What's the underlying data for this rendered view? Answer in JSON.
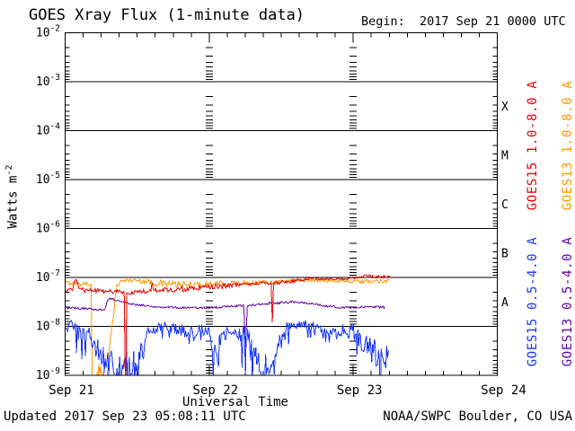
{
  "footer": {
    "updated": "Updated 2017 Sep 23 05:08:11 UTC",
    "credit": "NOAA/SWPC Boulder, CO USA"
  },
  "chart_data": {
    "type": "line",
    "title": "GOES Xray Flux (1-minute data)",
    "begin_label": "Begin:  2017 Sep 21 0000 UTC",
    "xlabel": "Universal Time",
    "ylabel_base": "Watts m",
    "ylabel_exp": "-2",
    "x_axis": {
      "ticks": [
        "Sep 21",
        "Sep 22",
        "Sep 23",
        "Sep 24"
      ],
      "range_days": [
        0,
        3
      ],
      "minor_ticks_per_day": 8
    },
    "y_axis": {
      "scale": "log",
      "tick_exponents": [
        -2,
        -3,
        -4,
        -5,
        -6,
        -7,
        -8,
        -9
      ],
      "range": [
        1e-09,
        0.01
      ]
    },
    "flare_classes": [
      {
        "label": "X",
        "log_center": -3.5
      },
      {
        "label": "M",
        "log_center": -4.5
      },
      {
        "label": "C",
        "log_center": -5.5
      },
      {
        "label": "B",
        "log_center": -6.5
      },
      {
        "label": "A",
        "log_center": -7.5
      }
    ],
    "legend": [
      {
        "label": "GOES15 1.0-8.0 A",
        "color": "#ee0000",
        "column": 1,
        "half": "top"
      },
      {
        "label": "GOES13 1.0-8.0 A",
        "color": "#ff9800",
        "column": 2,
        "half": "top"
      },
      {
        "label": "GOES15 0.5-4.0 A",
        "color": "#1636ff",
        "column": 1,
        "half": "bottom"
      },
      {
        "label": "GOES13 0.5-4.0 A",
        "color": "#5f00ac",
        "column": 2,
        "half": "bottom"
      }
    ],
    "grid": {
      "horizontal_decades": true,
      "day_boundary_tick_columns": [
        1,
        2
      ]
    },
    "series": [
      {
        "id": "goes13-long",
        "name": "GOES13 1.0-8.0 A",
        "color": "#ff9800",
        "spiky": false,
        "points": [
          [
            0.0,
            -7.11,
            0.04
          ],
          [
            0.1,
            -7.12,
            0.05
          ],
          [
            0.18,
            -7.14,
            0.04
          ],
          [
            0.19,
            -9.4,
            0.05
          ],
          [
            0.24,
            -8.95,
            0.3
          ],
          [
            0.295,
            -8.9,
            0.3
          ],
          [
            0.33,
            -7.9,
            0.1
          ],
          [
            0.36,
            -7.15,
            0.05
          ],
          [
            0.4,
            -7.06,
            0.04
          ],
          [
            0.5,
            -7.06,
            0.05
          ],
          [
            0.65,
            -7.12,
            0.07
          ],
          [
            0.85,
            -7.16,
            0.07
          ],
          [
            1.05,
            -7.13,
            0.05
          ],
          [
            1.25,
            -7.11,
            0.05
          ],
          [
            1.45,
            -7.09,
            0.05
          ],
          [
            1.65,
            -7.06,
            0.04
          ],
          [
            1.85,
            -7.06,
            0.04
          ],
          [
            2.05,
            -7.09,
            0.04
          ],
          [
            2.255,
            -7.06,
            0.04
          ]
        ]
      },
      {
        "id": "goes13-short",
        "name": "GOES13 0.5-4.0 A",
        "color": "#5f00ac",
        "spiky": false,
        "points": [
          [
            0.0,
            -7.62,
            0.025
          ],
          [
            0.15,
            -7.64,
            0.025
          ],
          [
            0.275,
            -7.66,
            0.02
          ],
          [
            0.29,
            -7.5,
            0.02
          ],
          [
            0.31,
            -7.42,
            0.02
          ],
          [
            0.36,
            -7.47,
            0.02
          ],
          [
            0.45,
            -7.54,
            0.02
          ],
          [
            0.6,
            -7.59,
            0.02
          ],
          [
            0.8,
            -7.62,
            0.02
          ],
          [
            1.0,
            -7.62,
            0.02
          ],
          [
            1.15,
            -7.59,
            0.02
          ],
          [
            1.24,
            -7.58,
            0.02
          ],
          [
            1.252,
            -8.42,
            0.02
          ],
          [
            1.265,
            -7.58,
            0.02
          ],
          [
            1.4,
            -7.53,
            0.025
          ],
          [
            1.6,
            -7.5,
            0.025
          ],
          [
            1.72,
            -7.54,
            0.02
          ],
          [
            1.85,
            -7.6,
            0.025
          ],
          [
            2.0,
            -7.62,
            0.02
          ],
          [
            2.1,
            -7.6,
            0.02
          ],
          [
            2.22,
            -7.61,
            0.025
          ]
        ]
      },
      {
        "id": "goes15-short",
        "name": "GOES15 0.5-4.0 A",
        "color": "#1636ff",
        "spiky": true,
        "points": [
          [
            0.0,
            -8.02,
            0.15
          ],
          [
            0.06,
            -8.06,
            0.18
          ],
          [
            0.11,
            -8.18,
            0.25
          ],
          [
            0.16,
            -8.12,
            0.18
          ],
          [
            0.2,
            -8.3,
            0.28
          ],
          [
            0.24,
            -8.55,
            0.3
          ],
          [
            0.29,
            -8.72,
            0.3
          ],
          [
            0.36,
            -8.85,
            0.3
          ],
          [
            0.44,
            -8.8,
            0.3
          ],
          [
            0.5,
            -8.78,
            0.28
          ],
          [
            0.55,
            -8.4,
            0.25
          ],
          [
            0.59,
            -8.08,
            0.13
          ],
          [
            0.68,
            -8.0,
            0.11
          ],
          [
            0.78,
            -8.07,
            0.12
          ],
          [
            0.88,
            -8.04,
            0.11
          ],
          [
            0.98,
            -8.1,
            0.14
          ],
          [
            1.04,
            -8.38,
            0.28
          ],
          [
            1.09,
            -8.16,
            0.15
          ],
          [
            1.18,
            -8.07,
            0.12
          ],
          [
            1.27,
            -8.28,
            0.25
          ],
          [
            1.33,
            -8.78,
            0.33
          ],
          [
            1.41,
            -8.85,
            0.33
          ],
          [
            1.47,
            -8.5,
            0.28
          ],
          [
            1.52,
            -8.12,
            0.15
          ],
          [
            1.57,
            -7.94,
            0.1
          ],
          [
            1.65,
            -7.95,
            0.1
          ],
          [
            1.74,
            -8.02,
            0.12
          ],
          [
            1.84,
            -8.08,
            0.12
          ],
          [
            1.94,
            -8.06,
            0.14
          ],
          [
            2.02,
            -8.16,
            0.2
          ],
          [
            2.08,
            -8.4,
            0.3
          ],
          [
            2.14,
            -8.55,
            0.36
          ],
          [
            2.2,
            -8.6,
            0.38
          ],
          [
            2.245,
            -8.5,
            0.35
          ]
        ]
      },
      {
        "id": "goes15-long",
        "name": "GOES15 1.0-8.0 A",
        "color": "#ee0000",
        "spiky": false,
        "points": [
          [
            0.0,
            -7.28,
            0.05
          ],
          [
            0.05,
            -7.27,
            0.05
          ],
          [
            0.065,
            -7.08,
            0.02
          ],
          [
            0.08,
            -7.05,
            0.02
          ],
          [
            0.095,
            -7.22,
            0.04
          ],
          [
            0.13,
            -7.26,
            0.05
          ],
          [
            0.3,
            -7.28,
            0.05
          ],
          [
            0.41,
            -7.3,
            0.04
          ],
          [
            0.419,
            -9.5,
            0.02
          ],
          [
            0.428,
            -7.32,
            0.04
          ],
          [
            0.5,
            -7.3,
            0.05
          ],
          [
            0.595,
            -7.28,
            0.04
          ],
          [
            0.603,
            -7.1,
            0.02
          ],
          [
            0.615,
            -7.26,
            0.04
          ],
          [
            0.8,
            -7.24,
            0.06
          ],
          [
            1.0,
            -7.2,
            0.05
          ],
          [
            1.2,
            -7.15,
            0.05
          ],
          [
            1.3,
            -7.12,
            0.04
          ],
          [
            1.43,
            -7.12,
            0.03
          ],
          [
            1.438,
            -7.92,
            0.02
          ],
          [
            1.447,
            -7.12,
            0.03
          ],
          [
            1.55,
            -7.08,
            0.04
          ],
          [
            1.7,
            -7.02,
            0.03
          ],
          [
            1.85,
            -7.04,
            0.03
          ],
          [
            2.0,
            -7.01,
            0.03
          ],
          [
            2.09,
            -6.95,
            0.025
          ],
          [
            2.14,
            -6.99,
            0.03
          ],
          [
            2.2,
            -6.98,
            0.03
          ],
          [
            2.255,
            -6.97,
            0.03
          ]
        ]
      }
    ]
  }
}
